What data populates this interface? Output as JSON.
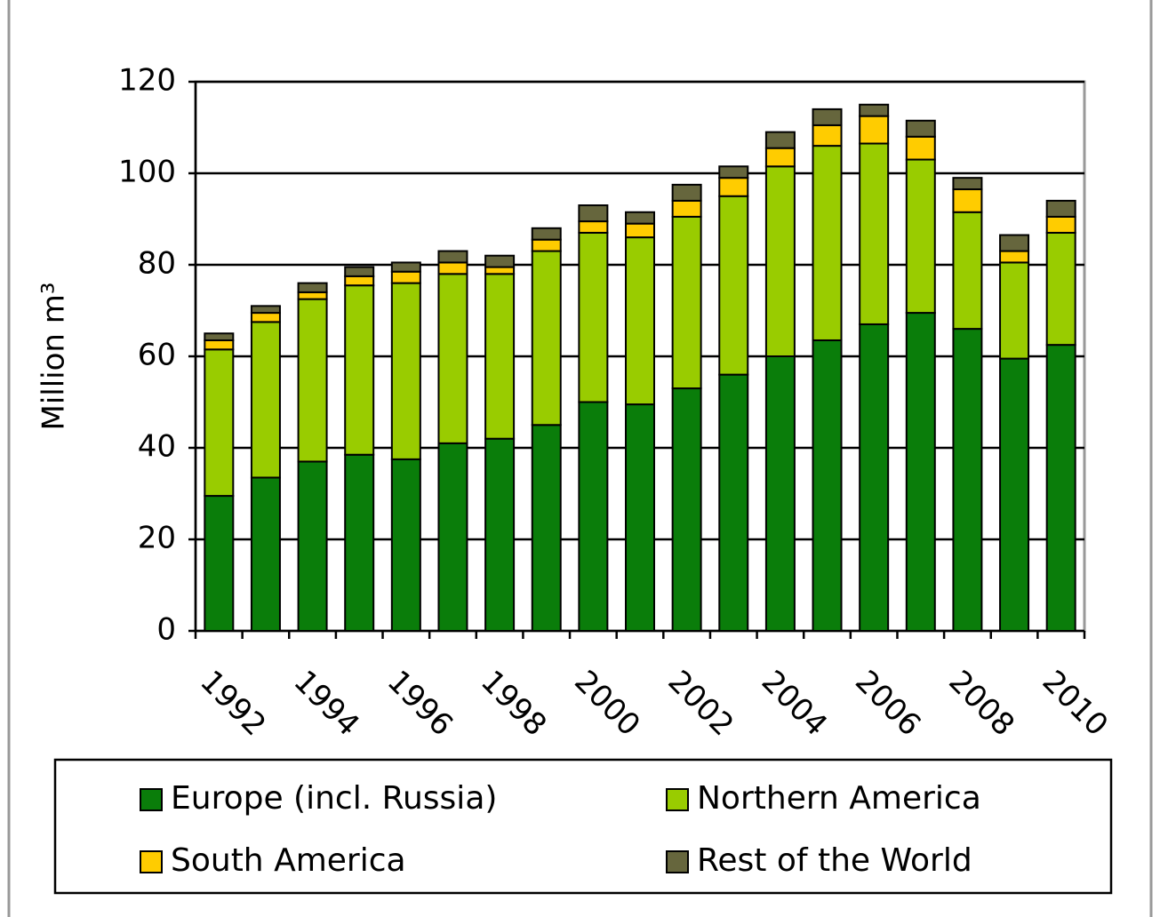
{
  "chart_data": {
    "type": "stacked_bar",
    "y_label": "Million m³",
    "categories": [
      "1992",
      null,
      "1994",
      null,
      "1996",
      null,
      "1998",
      null,
      "2000",
      null,
      "2002",
      null,
      "2004",
      null,
      "2006",
      null,
      "2008",
      null,
      "2010"
    ],
    "series": [
      {
        "name": "Europe (incl. Russia)",
        "color": "#0a7d0a",
        "values": [
          29.5,
          33.5,
          37,
          38.5,
          37.5,
          41,
          42,
          45,
          50,
          49.5,
          53,
          56,
          60,
          63.5,
          67,
          69.5,
          66,
          59.5,
          62.5
        ]
      },
      {
        "name": "Northern America",
        "color": "#99cc00",
        "values": [
          32,
          34,
          35.5,
          37,
          38.5,
          37,
          36,
          38,
          37,
          36.5,
          37.5,
          39,
          41.5,
          42.5,
          39.5,
          33.5,
          25.5,
          21,
          24.5
        ]
      },
      {
        "name": "South America",
        "color": "#ffcc00",
        "values": [
          2,
          2,
          1.5,
          2,
          2.5,
          2.5,
          1.5,
          2.5,
          2.5,
          3,
          3.5,
          4,
          4,
          4.5,
          6,
          5,
          5,
          2.5,
          3.5
        ]
      },
      {
        "name": "Rest of the World",
        "color": "#66663d",
        "values": [
          1.5,
          1.5,
          2,
          2,
          2,
          2.5,
          2.5,
          2.5,
          3.5,
          2.5,
          3.5,
          2.5,
          3.5,
          3.5,
          2.5,
          3.5,
          2.5,
          3.5,
          3.5
        ]
      }
    ],
    "ylim": [
      0,
      120
    ],
    "yticks": [
      0,
      20,
      40,
      60,
      80,
      100,
      120
    ],
    "grid": true
  }
}
